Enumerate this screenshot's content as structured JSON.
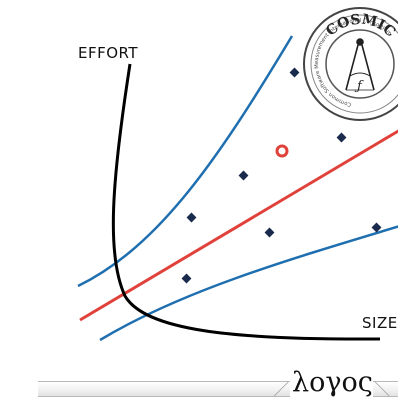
{
  "labels": {
    "effort": "EFFORT",
    "size": "SIZE",
    "logos": "λογος"
  },
  "logo": {
    "name": "COSMIC",
    "arc_text": "Common Software Measurement International Consortium"
  },
  "colors": {
    "confidence_band": "#1f6fb0",
    "regression_line": "#e0413a",
    "effort_curve": "#000000",
    "data_point": "#1a2a4d",
    "outlier": "#e0413a"
  },
  "icons": [
    "cosmic-logo-icon",
    "compass-icon",
    "diamond-marker-icon",
    "circle-marker-icon"
  ]
}
